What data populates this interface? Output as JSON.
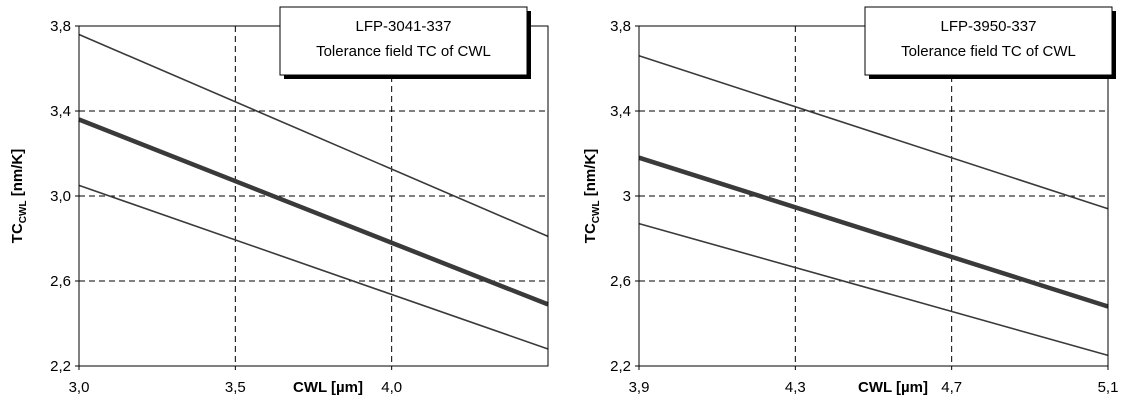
{
  "chart_data": [
    {
      "type": "line",
      "legend_lines": [
        "LFP-3041-337",
        "Tolerance field TC of CWL"
      ],
      "xlabel": "CWL [µm]",
      "ylabel_main": "TC",
      "ylabel_sub": "CWL",
      "ylabel_unit": " [nm/K]",
      "xlim": [
        3.0,
        4.5
      ],
      "ylim": [
        2.2,
        3.8
      ],
      "x_ticks": [
        3.0,
        3.5,
        4.0
      ],
      "x_tick_labels": [
        "3,0",
        "3,5",
        "4,0"
      ],
      "y_ticks": [
        2.2,
        2.6,
        3.0,
        3.4,
        3.8
      ],
      "y_tick_labels": [
        "2,2",
        "2,6",
        "3,0",
        "3,4",
        "3,8"
      ],
      "grid": true,
      "legend_position": "top-right",
      "series": [
        {
          "x": [
            3.0,
            4.5
          ],
          "y": [
            3.76,
            2.81
          ],
          "emphasis": false
        },
        {
          "x": [
            3.0,
            4.5
          ],
          "y": [
            3.36,
            2.49
          ],
          "emphasis": true
        },
        {
          "x": [
            3.0,
            4.5
          ],
          "y": [
            3.05,
            2.28
          ],
          "emphasis": false
        }
      ]
    },
    {
      "type": "line",
      "legend_lines": [
        "LFP-3950-337",
        "Tolerance field TC of CWL"
      ],
      "xlabel": "CWL [µm]",
      "ylabel_main": "TC",
      "ylabel_sub": "CWL",
      "ylabel_unit": " [nm/K]",
      "xlim": [
        3.9,
        5.1
      ],
      "ylim": [
        2.2,
        3.8
      ],
      "x_ticks": [
        3.9,
        4.3,
        4.7,
        5.1
      ],
      "x_tick_labels": [
        "3,9",
        "4,3",
        "4,7",
        "5,1"
      ],
      "y_ticks": [
        2.2,
        2.6,
        3.0,
        3.4,
        3.8
      ],
      "y_tick_labels": [
        "2,2",
        "2,6",
        "3",
        "3,4",
        "3,8"
      ],
      "grid": true,
      "legend_position": "top-right",
      "series": [
        {
          "x": [
            3.9,
            5.1
          ],
          "y": [
            3.66,
            2.94
          ],
          "emphasis": false
        },
        {
          "x": [
            3.9,
            5.1
          ],
          "y": [
            3.18,
            2.48
          ],
          "emphasis": true
        },
        {
          "x": [
            3.9,
            5.1
          ],
          "y": [
            2.87,
            2.25
          ],
          "emphasis": false
        }
      ]
    }
  ]
}
